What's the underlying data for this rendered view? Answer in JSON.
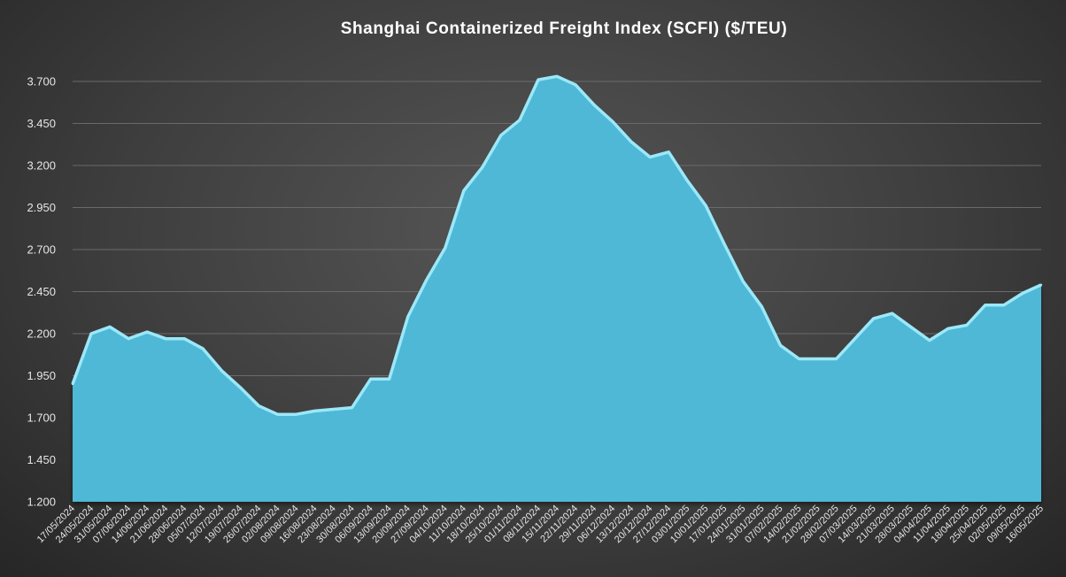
{
  "chart_data": {
    "type": "area",
    "title": "Shanghai Containerized Freight Index  (SCFI) ($/TEU)",
    "xlabel": "",
    "ylabel": "",
    "ylim": [
      1200,
      3700
    ],
    "yticks": [
      "1.200",
      "1.450",
      "1.700",
      "1.950",
      "2.200",
      "2.450",
      "2.700",
      "2.950",
      "3.200",
      "3.450",
      "3.700"
    ],
    "grid": true,
    "legend": "none",
    "colors": {
      "fill": "#4fb8d6",
      "line": "#9be8f8",
      "shadow": "#2b6f86"
    },
    "categories": [
      "17/05/2024",
      "24/05/2024",
      "31/05/2024",
      "07/06/2024",
      "14/06/2024",
      "21/06/2024",
      "28/06/2024",
      "05/07/2024",
      "12/07/2024",
      "19/07/2024",
      "26/07/2024",
      "02/08/2024",
      "09/08/2024",
      "16/08/2024",
      "23/08/2024",
      "30/08/2024",
      "06/09/2024",
      "13/09/2024",
      "20/09/2024",
      "27/09/2024",
      "04/10/2024",
      "11/10/2024",
      "18/10/2024",
      "25/10/2024",
      "01/11/2024",
      "08/11/2024",
      "15/11/2024",
      "22/11/2024",
      "29/11/2024",
      "06/12/2024",
      "13/12/2024",
      "20/12/2024",
      "27/12/2024",
      "03/01/2025",
      "10/01/2025",
      "17/01/2025",
      "24/01/2025",
      "31/01/2025",
      "07/02/2025",
      "14/02/2025",
      "21/02/2025",
      "28/02/2025",
      "07/03/2025",
      "14/03/2025",
      "21/03/2025",
      "28/03/2025",
      "04/04/2025",
      "11/04/2025",
      "18/04/2025",
      "25/04/2025",
      "02/05/2025",
      "09/05/2025",
      "16/05/2025"
    ],
    "values": [
      1900,
      2200,
      2240,
      2170,
      2210,
      2170,
      2170,
      2110,
      1980,
      1880,
      1770,
      1720,
      1720,
      1740,
      1750,
      1760,
      1930,
      1930,
      2300,
      2520,
      2710,
      3050,
      3190,
      3380,
      3470,
      3710,
      3730,
      3680,
      3560,
      3460,
      3340,
      3250,
      3280,
      3110,
      2960,
      2730,
      2510,
      2360,
      2130,
      2050,
      2050,
      2050,
      2170,
      2290,
      2320,
      2240,
      2160,
      2230,
      2250,
      2370,
      2370,
      2440,
      2490
    ]
  }
}
